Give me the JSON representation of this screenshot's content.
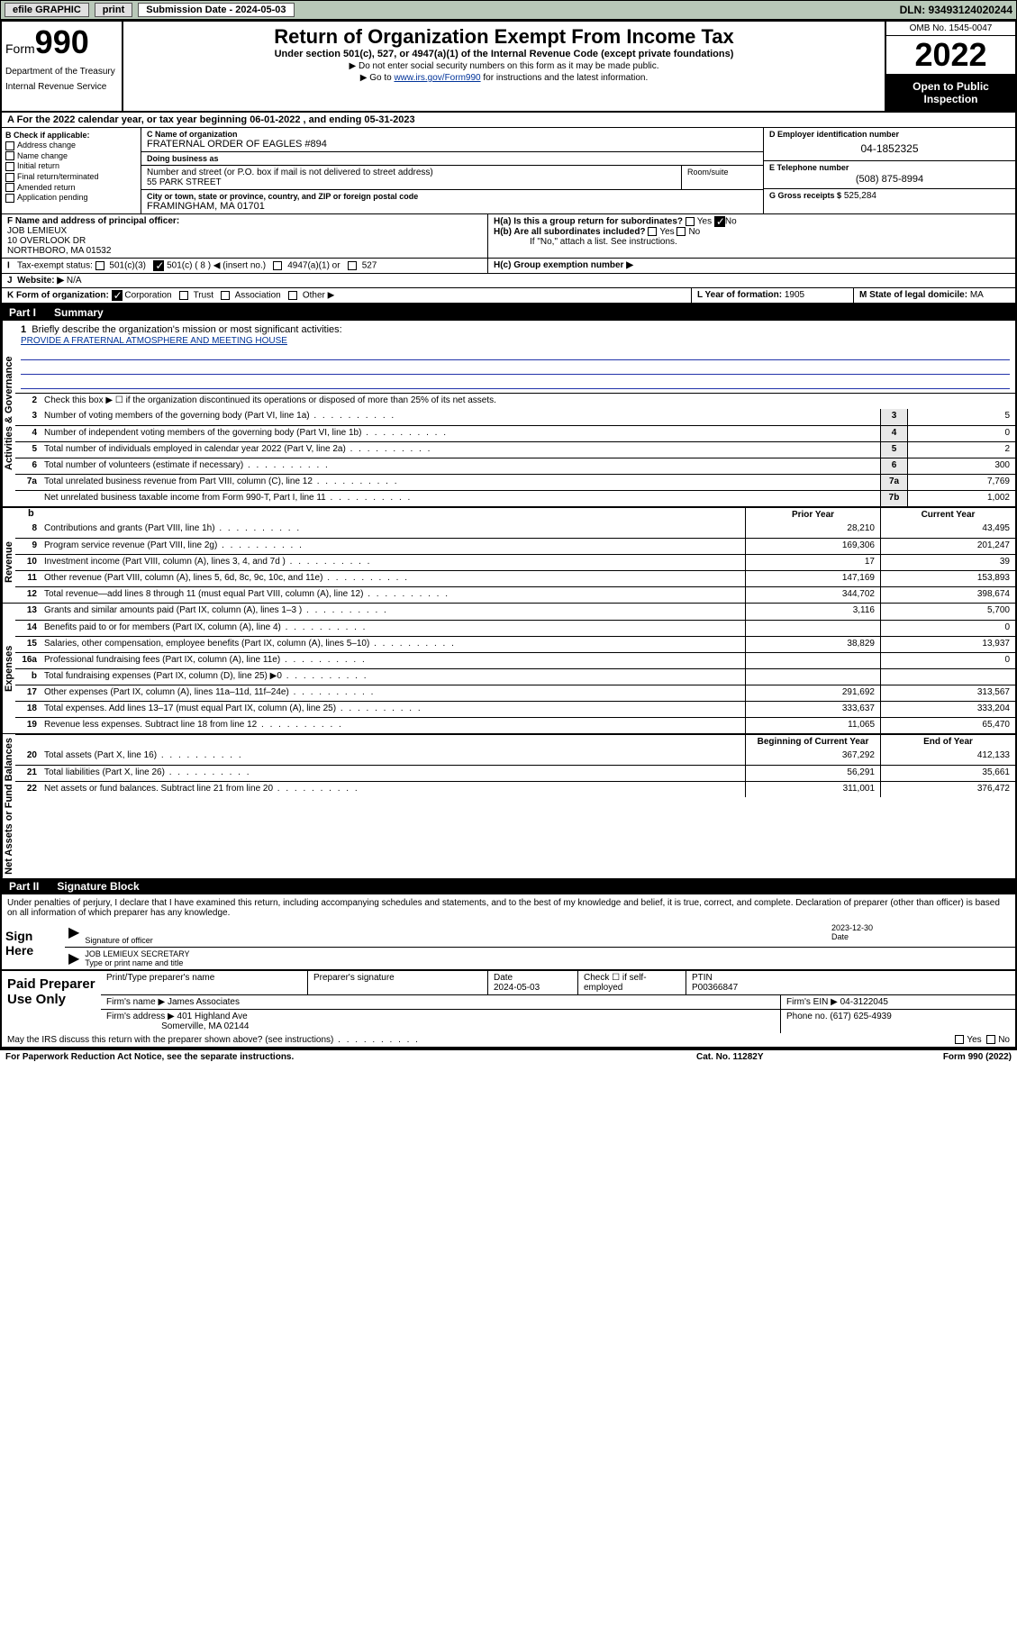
{
  "topbar": {
    "efile_label": "efile GRAPHIC",
    "print_label": "print",
    "submission_label": "Submission Date - 2024-05-03",
    "dln": "DLN: 93493124020244"
  },
  "header": {
    "form_word": "Form",
    "form_num": "990",
    "dept": "Department of the Treasury",
    "irs": "Internal Revenue Service",
    "title": "Return of Organization Exempt From Income Tax",
    "subtitle": "Under section 501(c), 527, or 4947(a)(1) of the Internal Revenue Code (except private foundations)",
    "note1": "▶ Do not enter social security numbers on this form as it may be made public.",
    "note2_pre": "▶ Go to ",
    "note2_link": "www.irs.gov/Form990",
    "note2_post": " for instructions and the latest information.",
    "omb": "OMB No. 1545-0047",
    "year": "2022",
    "open1": "Open to Public",
    "open2": "Inspection"
  },
  "row_a": "A For the 2022 calendar year, or tax year beginning 06-01-2022   , and ending 05-31-2023",
  "col_b": {
    "head": "B Check if applicable:",
    "opts": [
      "Address change",
      "Name change",
      "Initial return",
      "Final return/terminated",
      "Amended return",
      "Application pending"
    ]
  },
  "col_c": {
    "name_lbl": "C Name of organization",
    "name": "FRATERNAL ORDER OF EAGLES #894",
    "dba_lbl": "Doing business as",
    "dba": "",
    "addr_lbl": "Number and street (or P.O. box if mail is not delivered to street address)",
    "addr": "55 PARK STREET",
    "room_lbl": "Room/suite",
    "city_lbl": "City or town, state or province, country, and ZIP or foreign postal code",
    "city": "FRAMINGHAM, MA  01701"
  },
  "col_d": {
    "ein_lbl": "D Employer identification number",
    "ein": "04-1852325",
    "phone_lbl": "E Telephone number",
    "phone": "(508) 875-8994",
    "gross_lbl": "G Gross receipts $",
    "gross": "525,284"
  },
  "row_f": {
    "lbl": "F Name and address of principal officer:",
    "name": "JOB LEMIEUX",
    "addr1": "10 OVERLOOK DR",
    "addr2": "NORTHBORO, MA  01532"
  },
  "row_h": {
    "ha": "H(a)  Is this a group return for subordinates?",
    "hb": "H(b)  Are all subordinates included?",
    "hb_note": "If \"No,\" attach a list. See instructions.",
    "hc": "H(c)  Group exemption number ▶",
    "yes": "Yes",
    "no": "No"
  },
  "row_i": {
    "lbl": "Tax-exempt status:",
    "c3": "501(c)(3)",
    "c": "501(c) ( 8 ) ◀ (insert no.)",
    "a1": "4947(a)(1) or",
    "527": "527"
  },
  "row_j": {
    "lbl": "Website: ▶",
    "val": "N/A"
  },
  "row_k": {
    "lbl": "K Form of organization:",
    "corp": "Corporation",
    "trust": "Trust",
    "assoc": "Association",
    "other": "Other ▶"
  },
  "row_l": {
    "lbl": "L Year of formation:",
    "val": "1905"
  },
  "row_m": {
    "lbl": "M State of legal domicile:",
    "val": "MA"
  },
  "part1": {
    "num": "Part I",
    "title": "Summary"
  },
  "sections": {
    "gov": "Activities & Governance",
    "rev": "Revenue",
    "exp": "Expenses",
    "net": "Net Assets or Fund Balances"
  },
  "mission": {
    "q": "Briefly describe the organization's mission or most significant activities:",
    "text": "PROVIDE A FRATERNAL ATMOSPHERE AND MEETING HOUSE"
  },
  "line2": "Check this box ▶ ☐  if the organization discontinued its operations or disposed of more than 25% of its net assets.",
  "gov_rows": [
    {
      "n": "3",
      "d": "Number of voting members of the governing body (Part VI, line 1a)",
      "b": "3",
      "v": "5"
    },
    {
      "n": "4",
      "d": "Number of independent voting members of the governing body (Part VI, line 1b)",
      "b": "4",
      "v": "0"
    },
    {
      "n": "5",
      "d": "Total number of individuals employed in calendar year 2022 (Part V, line 2a)",
      "b": "5",
      "v": "2"
    },
    {
      "n": "6",
      "d": "Total number of volunteers (estimate if necessary)",
      "b": "6",
      "v": "300"
    },
    {
      "n": "7a",
      "d": "Total unrelated business revenue from Part VIII, column (C), line 12",
      "b": "7a",
      "v": "7,769"
    },
    {
      "n": "",
      "d": "Net unrelated business taxable income from Form 990-T, Part I, line 11",
      "b": "7b",
      "v": "1,002"
    }
  ],
  "year_header": {
    "b": "b",
    "prior": "Prior Year",
    "current": "Current Year"
  },
  "rev_rows": [
    {
      "n": "8",
      "d": "Contributions and grants (Part VIII, line 1h)",
      "p": "28,210",
      "c": "43,495"
    },
    {
      "n": "9",
      "d": "Program service revenue (Part VIII, line 2g)",
      "p": "169,306",
      "c": "201,247"
    },
    {
      "n": "10",
      "d": "Investment income (Part VIII, column (A), lines 3, 4, and 7d )",
      "p": "17",
      "c": "39"
    },
    {
      "n": "11",
      "d": "Other revenue (Part VIII, column (A), lines 5, 6d, 8c, 9c, 10c, and 11e)",
      "p": "147,169",
      "c": "153,893"
    },
    {
      "n": "12",
      "d": "Total revenue—add lines 8 through 11 (must equal Part VIII, column (A), line 12)",
      "p": "344,702",
      "c": "398,674"
    }
  ],
  "exp_rows": [
    {
      "n": "13",
      "d": "Grants and similar amounts paid (Part IX, column (A), lines 1–3 )",
      "p": "3,116",
      "c": "5,700"
    },
    {
      "n": "14",
      "d": "Benefits paid to or for members (Part IX, column (A), line 4)",
      "p": "",
      "c": "0"
    },
    {
      "n": "15",
      "d": "Salaries, other compensation, employee benefits (Part IX, column (A), lines 5–10)",
      "p": "38,829",
      "c": "13,937"
    },
    {
      "n": "16a",
      "d": "Professional fundraising fees (Part IX, column (A), line 11e)",
      "p": "",
      "c": "0"
    },
    {
      "n": "b",
      "d": "Total fundraising expenses (Part IX, column (D), line 25) ▶0",
      "p": "grey",
      "c": "grey"
    },
    {
      "n": "17",
      "d": "Other expenses (Part IX, column (A), lines 11a–11d, 11f–24e)",
      "p": "291,692",
      "c": "313,567"
    },
    {
      "n": "18",
      "d": "Total expenses. Add lines 13–17 (must equal Part IX, column (A), line 25)",
      "p": "333,637",
      "c": "333,204"
    },
    {
      "n": "19",
      "d": "Revenue less expenses. Subtract line 18 from line 12",
      "p": "11,065",
      "c": "65,470"
    }
  ],
  "net_header": {
    "begin": "Beginning of Current Year",
    "end": "End of Year"
  },
  "net_rows": [
    {
      "n": "20",
      "d": "Total assets (Part X, line 16)",
      "p": "367,292",
      "c": "412,133"
    },
    {
      "n": "21",
      "d": "Total liabilities (Part X, line 26)",
      "p": "56,291",
      "c": "35,661"
    },
    {
      "n": "22",
      "d": "Net assets or fund balances. Subtract line 21 from line 20",
      "p": "311,001",
      "c": "376,472"
    }
  ],
  "part2": {
    "num": "Part II",
    "title": "Signature Block"
  },
  "penalties": "Under penalties of perjury, I declare that I have examined this return, including accompanying schedules and statements, and to the best of my knowledge and belief, it is true, correct, and complete. Declaration of preparer (other than officer) is based on all information of which preparer has any knowledge.",
  "sign": {
    "here": "Sign Here",
    "sig_officer": "Signature of officer",
    "date_lbl": "Date",
    "date": "2023-12-30",
    "name": "JOB LEMIEUX  SECRETARY",
    "name_lbl": "Type or print name and title"
  },
  "paid": {
    "title": "Paid Preparer Use Only",
    "name_lbl": "Print/Type preparer's name",
    "sig_lbl": "Preparer's signature",
    "date_lbl": "Date",
    "date": "2024-05-03",
    "check_lbl": "Check ☐ if self-employed",
    "ptin_lbl": "PTIN",
    "ptin": "P00366847",
    "firm_name_lbl": "Firm's name    ▶",
    "firm_name": "James Associates",
    "firm_ein_lbl": "Firm's EIN ▶",
    "firm_ein": "04-3122045",
    "firm_addr_lbl": "Firm's address ▶",
    "firm_addr1": "401 Highland Ave",
    "firm_addr2": "Somerville, MA  02144",
    "phone_lbl": "Phone no.",
    "phone": "(617) 625-4939"
  },
  "may_discuss": "May the IRS discuss this return with the preparer shown above? (see instructions)",
  "footer": {
    "left": "For Paperwork Reduction Act Notice, see the separate instructions.",
    "mid": "Cat. No. 11282Y",
    "right": "Form 990 (2022)"
  },
  "colors": {
    "topbar_bg": "#b8c8b8",
    "link": "#003399",
    "grey_cell": "#c0c0c0"
  }
}
